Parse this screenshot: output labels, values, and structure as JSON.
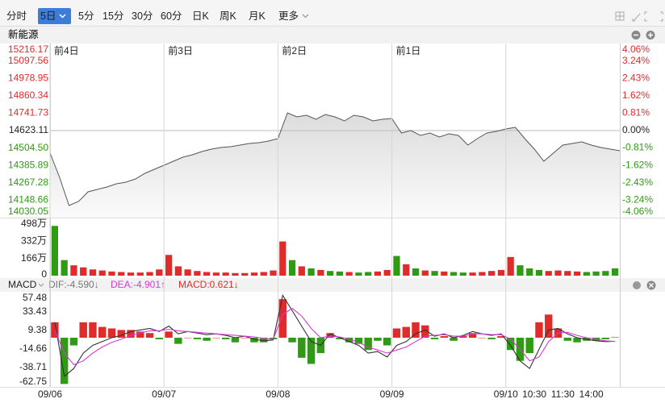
{
  "toolbar": {
    "tabs": [
      "分时",
      "5日",
      "5分",
      "15分",
      "30分",
      "60分",
      "日K",
      "周K",
      "月K",
      "更多"
    ],
    "selected": 1
  },
  "chart_data": [
    {
      "type": "line",
      "title": "新能源",
      "color": "#555555",
      "up_color": "#e02b2b",
      "down_color": "#2f9a14",
      "base_color": "#222222",
      "xlim": [
        0,
        1200
      ],
      "x": [
        0,
        20,
        40,
        60,
        80,
        100,
        120,
        140,
        160,
        180,
        200,
        220,
        240,
        260,
        280,
        300,
        320,
        340,
        360,
        380,
        400,
        420,
        440,
        460,
        480,
        500,
        520,
        540,
        560,
        580,
        600,
        620,
        640,
        660,
        680,
        700,
        720,
        740,
        760,
        780,
        800,
        820,
        840,
        860,
        880,
        900,
        920,
        940,
        960,
        980,
        1000,
        1020,
        1040,
        1060,
        1080,
        1100,
        1120,
        1140,
        1160,
        1180,
        1200
      ],
      "values": [
        14469.4,
        14304.7,
        14112.5,
        14140.0,
        14205.9,
        14222.3,
        14238.8,
        14260.8,
        14271.7,
        14293.7,
        14332.1,
        14359.6,
        14387.0,
        14414.5,
        14441.9,
        14458.4,
        14480.4,
        14496.8,
        14507.8,
        14513.3,
        14524.3,
        14535.3,
        14540.7,
        14551.7,
        14568.2,
        14743.9,
        14716.4,
        14727.4,
        14700.0,
        14732.9,
        14716.4,
        14689.0,
        14727.4,
        14716.4,
        14689.0,
        14700.0,
        14705.5,
        14606.6,
        14623.1,
        14590.2,
        14606.6,
        14579.2,
        14601.1,
        14590.2,
        14524.3,
        14568.2,
        14606.6,
        14617.6,
        14634.1,
        14645.1,
        14568.2,
        14496.8,
        14414.5,
        14469.4,
        14524.3,
        14535.3,
        14546.2,
        14524.3,
        14507.8,
        14496.8,
        14485.8
      ],
      "ylim": [
        14030.05,
        15216.17
      ],
      "yticks": [
        15216.17,
        15097.56,
        14978.95,
        14860.34,
        14741.73,
        14623.11,
        {
          "value": 14504.5,
          "label": "14504.50"
        },
        14385.89,
        14267.28,
        14148.66,
        14030.05
      ],
      "y2lim": [
        -4.06,
        4.06
      ],
      "y2ticks": [
        {
          "value": 4.06,
          "label": "4.06%"
        },
        {
          "value": 3.24,
          "label": "3.24%"
        },
        {
          "value": 2.43,
          "label": "2.43%"
        },
        {
          "value": 1.62,
          "label": "1.62%"
        },
        {
          "value": 0.81,
          "label": "0.81%"
        },
        {
          "value": 0,
          "label": "0.00%"
        },
        {
          "value": -0.81,
          "label": "-0.81%"
        },
        {
          "value": -1.62,
          "label": "-1.62%"
        },
        {
          "value": -2.43,
          "label": "-2.43%"
        },
        {
          "value": -3.24,
          "label": "-3.24%"
        },
        {
          "value": -4.06,
          "label": "-4.06%"
        }
      ],
      "xticks": [
        {
          "value": 0,
          "label": "前4日"
        },
        {
          "value": 240,
          "label": "前3日"
        },
        {
          "value": 480,
          "label": "前2日"
        },
        {
          "value": 720,
          "label": "前1日"
        }
      ]
    },
    {
      "type": "bar",
      "up_color": "#e02b2b",
      "down_color": "#2f9a14",
      "xlim": [
        0,
        1200
      ],
      "x": [
        10,
        30,
        50,
        70,
        90,
        110,
        130,
        150,
        170,
        190,
        210,
        230,
        250,
        270,
        290,
        310,
        330,
        350,
        370,
        390,
        410,
        430,
        450,
        470,
        490,
        510,
        530,
        550,
        570,
        590,
        610,
        630,
        650,
        670,
        690,
        710,
        730,
        750,
        770,
        790,
        810,
        830,
        850,
        870,
        890,
        910,
        930,
        950,
        970,
        990,
        1010,
        1030,
        1050,
        1070,
        1090,
        1110,
        1130,
        1150,
        1170,
        1190
      ],
      "values": [
        480,
        150,
        100,
        80,
        60,
        50,
        40,
        35,
        30,
        30,
        35,
        60,
        200,
        90,
        60,
        45,
        35,
        30,
        30,
        25,
        25,
        30,
        35,
        50,
        330,
        150,
        90,
        70,
        55,
        45,
        40,
        35,
        30,
        35,
        40,
        55,
        190,
        110,
        70,
        50,
        45,
        40,
        35,
        30,
        30,
        35,
        45,
        55,
        180,
        100,
        70,
        55,
        45,
        50,
        45,
        40,
        35,
        40,
        45,
        70
      ],
      "ylim": [
        0,
        560
      ],
      "yticks": [
        {
          "value": 498,
          "label": "498万"
        },
        {
          "value": 332,
          "label": "332万"
        },
        {
          "value": 166,
          "label": "166万"
        },
        0
      ]
    },
    {
      "type": "macd",
      "indicator": "MACD",
      "up_color": "#e02b2b",
      "down_color": "#2f9a14",
      "xlim": [
        0,
        1200
      ],
      "x": [
        10,
        30,
        50,
        70,
        90,
        110,
        130,
        150,
        170,
        190,
        210,
        230,
        250,
        270,
        290,
        310,
        330,
        350,
        370,
        390,
        410,
        430,
        450,
        470,
        490,
        510,
        530,
        550,
        570,
        590,
        610,
        630,
        650,
        670,
        690,
        710,
        730,
        750,
        770,
        790,
        810,
        830,
        850,
        870,
        890,
        910,
        930,
        950,
        970,
        990,
        1010,
        1030,
        1050,
        1070,
        1090,
        1110,
        1130,
        1150,
        1170,
        1190
      ],
      "series": [
        {
          "name": "DIF:-4.590↓",
          "color": "#333333",
          "label_color": "#777777",
          "values": [
            20,
            -50,
            -40,
            -20,
            -10,
            -5,
            0,
            3,
            8,
            10,
            12,
            8,
            15,
            5,
            8,
            6,
            4,
            5,
            3,
            0,
            2,
            -2,
            -4,
            -3,
            55,
            35,
            15,
            -5,
            -10,
            5,
            0,
            -5,
            -10,
            -20,
            -18,
            -25,
            -10,
            -5,
            5,
            10,
            2,
            5,
            0,
            3,
            8,
            5,
            3,
            5,
            -10,
            -30,
            -40,
            -15,
            10,
            12,
            5,
            0,
            -2,
            -4,
            -5,
            -4.59
          ]
        },
        {
          "name": "DEA:-4.901↑",
          "color": "#d23ad2",
          "label_color": "#d23ad2",
          "values": [
            10,
            -20,
            -35,
            -30,
            -20,
            -12,
            -6,
            -2,
            3,
            6,
            9,
            9,
            11,
            9,
            8,
            7,
            6,
            5,
            4,
            3,
            2,
            1,
            -1,
            -2,
            30,
            38,
            28,
            12,
            0,
            2,
            1,
            -2,
            -6,
            -12,
            -16,
            -20,
            -16,
            -12,
            -5,
            2,
            3,
            4,
            2,
            2,
            5,
            5,
            4,
            4,
            -2,
            -15,
            -30,
            -25,
            -5,
            6,
            7,
            3,
            0,
            -2,
            -4,
            -4.901
          ]
        },
        {
          "name": "MACD:0.621↓",
          "type": "bar",
          "label_color": "#e02b2b",
          "values": [
            20,
            -60,
            -10,
            20,
            20,
            14,
            12,
            10,
            10,
            8,
            6,
            -2,
            8,
            -8,
            0,
            -2,
            -4,
            0,
            -2,
            -6,
            0,
            -6,
            -6,
            -2,
            50,
            -6,
            -26,
            -34,
            -20,
            6,
            -2,
            -6,
            -8,
            -16,
            -4,
            -10,
            12,
            14,
            20,
            16,
            -2,
            2,
            -4,
            2,
            6,
            0,
            -2,
            2,
            -16,
            -30,
            -20,
            20,
            30,
            12,
            -4,
            -6,
            -4,
            -4,
            -2,
            0.621
          ]
        }
      ],
      "ylim": [
        -62.75,
        57.48
      ],
      "yticks": [
        57.48,
        33.43,
        9.38,
        -14.66,
        -38.71,
        -62.75
      ],
      "xticks": [
        {
          "value": 0,
          "label": "09/06"
        },
        {
          "value": 240,
          "label": "09/07"
        },
        {
          "value": 480,
          "label": "09/08"
        },
        {
          "value": 720,
          "label": "09/09"
        },
        {
          "value": 960,
          "label": "09/10"
        },
        {
          "value": 1020,
          "label": "10:30"
        },
        {
          "value": 1080,
          "label": "11:30"
        },
        {
          "value": 1140,
          "label": "14:00"
        }
      ]
    }
  ]
}
